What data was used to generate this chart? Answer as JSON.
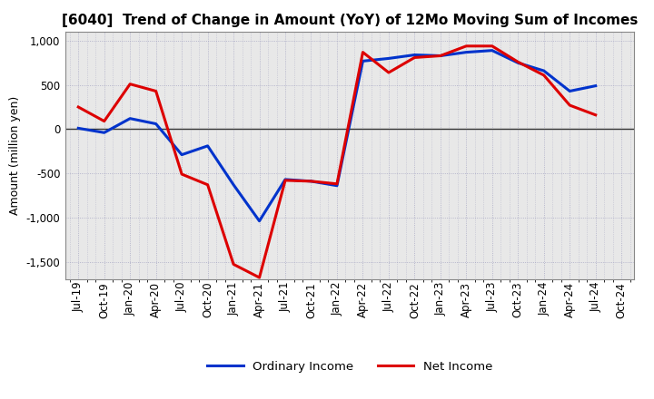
{
  "title": "[6040]  Trend of Change in Amount (YoY) of 12Mo Moving Sum of Incomes",
  "ylabel": "Amount (million yen)",
  "x_labels": [
    "Jul-19",
    "Oct-19",
    "Jan-20",
    "Apr-20",
    "Jul-20",
    "Oct-20",
    "Jan-21",
    "Apr-21",
    "Jul-21",
    "Oct-21",
    "Jan-22",
    "Apr-22",
    "Jul-22",
    "Oct-22",
    "Jan-23",
    "Apr-23",
    "Jul-23",
    "Oct-23",
    "Jan-24",
    "Apr-24",
    "Jul-24",
    "Oct-24"
  ],
  "ordinary_income": [
    10,
    -40,
    120,
    60,
    -290,
    -190,
    -630,
    -1040,
    -570,
    -590,
    -640,
    770,
    800,
    840,
    830,
    870,
    890,
    750,
    660,
    430,
    490,
    null
  ],
  "net_income": [
    250,
    90,
    510,
    430,
    -510,
    -630,
    -1530,
    -1680,
    -580,
    -590,
    -620,
    870,
    640,
    810,
    830,
    940,
    940,
    760,
    610,
    270,
    160,
    null
  ],
  "ylim": [
    -1700,
    1100
  ],
  "yticks": [
    -1500,
    -1000,
    -500,
    0,
    500,
    1000
  ],
  "ordinary_color": "#0033cc",
  "net_color": "#dd0000",
  "plot_bg_color": "#e8e8e8",
  "fig_bg_color": "#ffffff",
  "grid_color": "#9999bb",
  "legend_ordinary": "Ordinary Income",
  "legend_net": "Net Income",
  "linewidth": 2.2,
  "title_fontsize": 11,
  "ylabel_fontsize": 9,
  "tick_fontsize": 8.5,
  "legend_fontsize": 9.5
}
